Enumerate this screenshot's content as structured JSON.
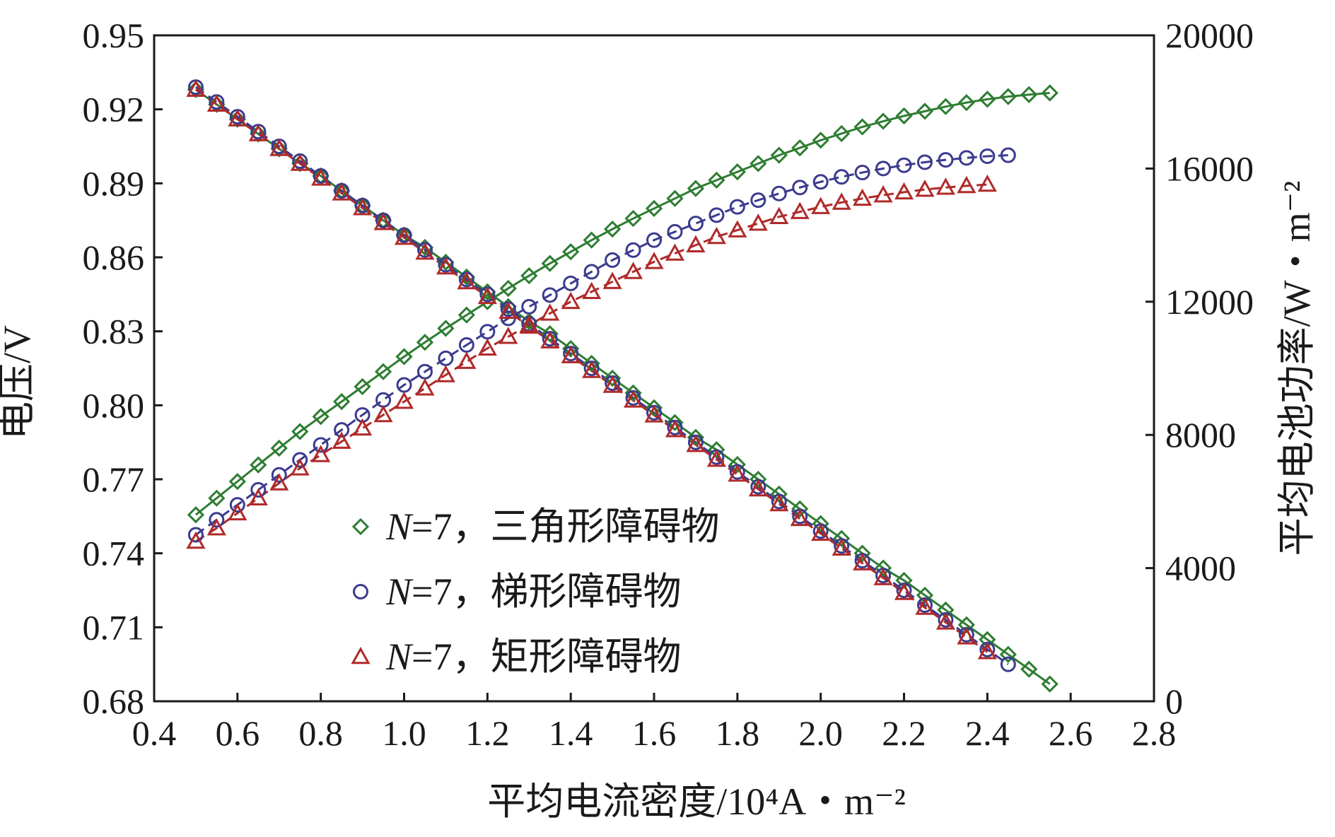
{
  "chart_data": {
    "type": "line",
    "title": "",
    "xlabel": "平均电流密度/10⁴A・m⁻²",
    "ylabel": "电压/V",
    "y2label": "平均电池功率/W・m⁻²",
    "xlim": [
      0.4,
      2.8
    ],
    "ylim": [
      0.68,
      0.95
    ],
    "y2lim": [
      0,
      20000
    ],
    "xticks": [
      "0.4",
      "0.6",
      "0.8",
      "1.0",
      "1.2",
      "1.4",
      "1.6",
      "1.8",
      "2.0",
      "2.2",
      "2.4",
      "2.6",
      "2.8"
    ],
    "yticks": [
      "0.68",
      "0.71",
      "0.74",
      "0.77",
      "0.80",
      "0.83",
      "0.86",
      "0.89",
      "0.92",
      "0.95"
    ],
    "y2ticks": [
      "0",
      "4000",
      "8000",
      "12000",
      "16000",
      "20000"
    ],
    "grid": false,
    "legend_position": "lower-left",
    "series": [
      {
        "name": "N=7，三角形障碍物",
        "legend_prefix": "N",
        "legend_suffix": "=7，三角形障碍物",
        "marker": "diamond",
        "color": "#2e7d32",
        "line_dash": "solid",
        "voltage": {
          "x": [
            0.5,
            0.55,
            0.6,
            0.65,
            0.7,
            0.75,
            0.8,
            0.85,
            0.9,
            0.95,
            1.0,
            1.05,
            1.1,
            1.15,
            1.2,
            1.25,
            1.3,
            1.35,
            1.4,
            1.45,
            1.5,
            1.55,
            1.6,
            1.65,
            1.7,
            1.75,
            1.8,
            1.85,
            1.9,
            1.95,
            2.0,
            2.05,
            2.1,
            2.15,
            2.2,
            2.25,
            2.3,
            2.35,
            2.4,
            2.45,
            2.5,
            2.55
          ],
          "y": [
            0.928,
            0.922,
            0.916,
            0.91,
            0.904,
            0.898,
            0.893,
            0.887,
            0.881,
            0.875,
            0.869,
            0.864,
            0.858,
            0.852,
            0.846,
            0.84,
            0.834,
            0.829,
            0.823,
            0.817,
            0.811,
            0.805,
            0.799,
            0.793,
            0.787,
            0.782,
            0.776,
            0.77,
            0.764,
            0.758,
            0.752,
            0.746,
            0.74,
            0.734,
            0.729,
            0.723,
            0.717,
            0.711,
            0.705,
            0.699,
            0.693,
            0.687
          ]
        },
        "power": {
          "x": [
            0.5,
            0.55,
            0.6,
            0.65,
            0.7,
            0.75,
            0.8,
            0.85,
            0.9,
            0.95,
            1.0,
            1.05,
            1.1,
            1.15,
            1.2,
            1.25,
            1.3,
            1.35,
            1.4,
            1.45,
            1.5,
            1.55,
            1.6,
            1.65,
            1.7,
            1.75,
            1.8,
            1.85,
            1.9,
            1.95,
            2.0,
            2.05,
            2.1,
            2.15,
            2.2,
            2.25,
            2.3,
            2.35,
            2.4,
            2.45,
            2.5,
            2.55
          ],
          "y": [
            5600,
            6100,
            6600,
            7100,
            7600,
            8100,
            8550,
            9000,
            9450,
            9900,
            10350,
            10780,
            11200,
            11600,
            12000,
            12400,
            12780,
            13150,
            13500,
            13850,
            14180,
            14500,
            14800,
            15100,
            15400,
            15650,
            15900,
            16150,
            16400,
            16620,
            16850,
            17050,
            17250,
            17420,
            17580,
            17720,
            17860,
            17980,
            18080,
            18160,
            18220,
            18270
          ]
        }
      },
      {
        "name": "N=7，梯形障碍物",
        "legend_prefix": "N",
        "legend_suffix": "=7，梯形障碍物",
        "marker": "circle",
        "color": "#3b3b8f",
        "line_dash": "dashed",
        "voltage": {
          "x": [
            0.5,
            0.55,
            0.6,
            0.65,
            0.7,
            0.75,
            0.8,
            0.85,
            0.9,
            0.95,
            1.0,
            1.05,
            1.1,
            1.15,
            1.2,
            1.25,
            1.3,
            1.35,
            1.4,
            1.45,
            1.5,
            1.55,
            1.6,
            1.65,
            1.7,
            1.75,
            1.8,
            1.85,
            1.9,
            1.95,
            2.0,
            2.05,
            2.1,
            2.15,
            2.2,
            2.25,
            2.3,
            2.35,
            2.4,
            2.45
          ],
          "y": [
            0.929,
            0.923,
            0.917,
            0.911,
            0.905,
            0.899,
            0.893,
            0.887,
            0.881,
            0.875,
            0.869,
            0.863,
            0.857,
            0.851,
            0.845,
            0.839,
            0.833,
            0.827,
            0.821,
            0.815,
            0.809,
            0.803,
            0.797,
            0.791,
            0.785,
            0.779,
            0.773,
            0.767,
            0.761,
            0.755,
            0.749,
            0.743,
            0.737,
            0.731,
            0.725,
            0.719,
            0.713,
            0.707,
            0.701,
            0.695
          ]
        },
        "power": {
          "x": [
            0.5,
            0.55,
            0.6,
            0.65,
            0.7,
            0.75,
            0.8,
            0.85,
            0.9,
            0.95,
            1.0,
            1.05,
            1.1,
            1.15,
            1.2,
            1.25,
            1.3,
            1.35,
            1.4,
            1.45,
            1.5,
            1.55,
            1.6,
            1.65,
            1.7,
            1.75,
            1.8,
            1.85,
            1.9,
            1.95,
            2.0,
            2.05,
            2.1,
            2.15,
            2.2,
            2.25,
            2.3,
            2.35,
            2.4,
            2.45
          ],
          "y": [
            5000,
            5450,
            5900,
            6350,
            6800,
            7250,
            7700,
            8150,
            8600,
            9050,
            9500,
            9900,
            10300,
            10700,
            11100,
            11500,
            11850,
            12200,
            12550,
            12900,
            13250,
            13550,
            13850,
            14100,
            14350,
            14600,
            14850,
            15050,
            15250,
            15430,
            15600,
            15750,
            15880,
            16000,
            16100,
            16190,
            16260,
            16320,
            16370,
            16400
          ]
        }
      },
      {
        "name": "N=7，矩形障碍物",
        "legend_prefix": "N",
        "legend_suffix": "=7，矩形障碍物",
        "marker": "triangle",
        "color": "#b02a2a",
        "line_dash": "dashed",
        "voltage": {
          "x": [
            0.5,
            0.55,
            0.6,
            0.65,
            0.7,
            0.75,
            0.8,
            0.85,
            0.9,
            0.95,
            1.0,
            1.05,
            1.1,
            1.15,
            1.2,
            1.25,
            1.3,
            1.35,
            1.4,
            1.45,
            1.5,
            1.55,
            1.6,
            1.65,
            1.7,
            1.75,
            1.8,
            1.85,
            1.9,
            1.95,
            2.0,
            2.05,
            2.1,
            2.15,
            2.2,
            2.25,
            2.3,
            2.35,
            2.4
          ],
          "y": [
            0.928,
            0.922,
            0.916,
            0.91,
            0.904,
            0.898,
            0.892,
            0.886,
            0.88,
            0.874,
            0.868,
            0.862,
            0.856,
            0.85,
            0.844,
            0.838,
            0.832,
            0.826,
            0.82,
            0.814,
            0.808,
            0.802,
            0.796,
            0.79,
            0.784,
            0.778,
            0.772,
            0.766,
            0.76,
            0.754,
            0.748,
            0.742,
            0.736,
            0.73,
            0.724,
            0.718,
            0.712,
            0.706,
            0.7
          ]
        },
        "power": {
          "x": [
            0.5,
            0.55,
            0.6,
            0.65,
            0.7,
            0.75,
            0.8,
            0.85,
            0.9,
            0.95,
            1.0,
            1.05,
            1.1,
            1.15,
            1.2,
            1.25,
            1.3,
            1.35,
            1.4,
            1.45,
            1.5,
            1.55,
            1.6,
            1.65,
            1.7,
            1.75,
            1.8,
            1.85,
            1.9,
            1.95,
            2.0,
            2.05,
            2.1,
            2.15,
            2.2,
            2.25,
            2.3,
            2.35,
            2.4
          ],
          "y": [
            4800,
            5200,
            5650,
            6100,
            6550,
            7000,
            7400,
            7800,
            8200,
            8600,
            9000,
            9400,
            9800,
            10200,
            10600,
            10950,
            11300,
            11650,
            12000,
            12300,
            12600,
            12900,
            13200,
            13450,
            13700,
            13950,
            14150,
            14350,
            14550,
            14700,
            14850,
            14980,
            15100,
            15200,
            15290,
            15370,
            15430,
            15480,
            15520
          ]
        }
      }
    ]
  }
}
